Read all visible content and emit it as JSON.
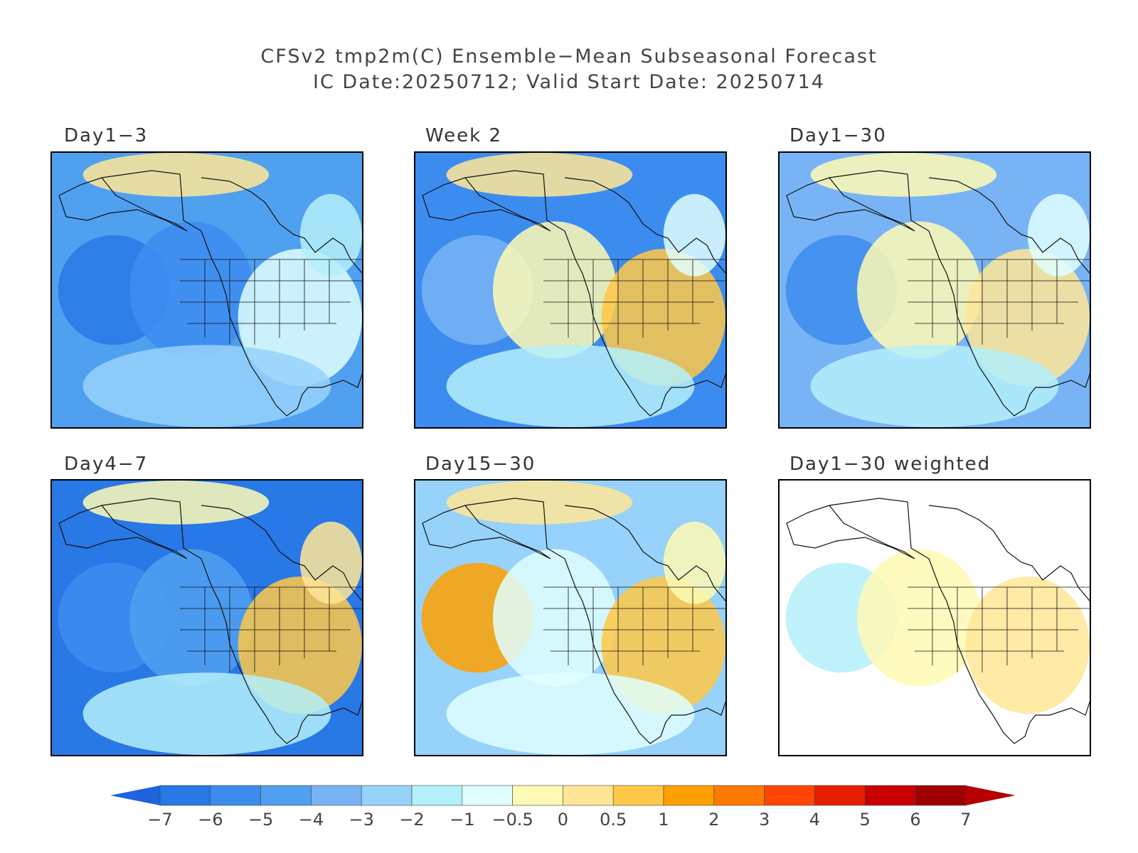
{
  "title": {
    "line1": "CFSv2 tmp2m(C) Ensemble−Mean Subseasonal Forecast",
    "line2": "IC Date:20250712; Valid Start Date: 20250714"
  },
  "panels": [
    {
      "label": "Day1−3",
      "palette": [
        3,
        1,
        2,
        7,
        9,
        6,
        5
      ]
    },
    {
      "label": "Week 2",
      "palette": [
        2,
        4,
        8,
        10,
        9,
        7,
        6
      ]
    },
    {
      "label": "Day1−30",
      "palette": [
        4,
        2,
        8,
        9,
        8,
        7,
        6
      ]
    },
    {
      "label": "Day4−7",
      "palette": [
        1,
        2,
        3,
        10,
        8,
        9,
        6
      ]
    },
    {
      "label": "Day15−30",
      "palette": [
        5,
        11,
        7,
        10,
        9,
        8,
        7
      ]
    },
    {
      "label": "Day1−30 weighted",
      "palette": [
        -1,
        6,
        8,
        9,
        -1,
        -1,
        -1
      ]
    }
  ],
  "colorbar": {
    "ticks": [
      "−7",
      "−6",
      "−5",
      "−4",
      "−3",
      "−2",
      "−1",
      "−0.5",
      "0",
      "0.5",
      "1",
      "2",
      "3",
      "4",
      "5",
      "6",
      "7"
    ],
    "colors": [
      "#1e64dc",
      "#2878e6",
      "#3c8cf0",
      "#50a0f0",
      "#78b4f5",
      "#96d2fa",
      "#b4f0fa",
      "#e1ffff",
      "#fffab4",
      "#ffe696",
      "#ffc846",
      "#ffa000",
      "#ff7800",
      "#ff4600",
      "#e61e00",
      "#c80000",
      "#a00000",
      "#b40000"
    ],
    "left_arrow_color": "#1e64dc",
    "right_arrow_color": "#b40000"
  }
}
